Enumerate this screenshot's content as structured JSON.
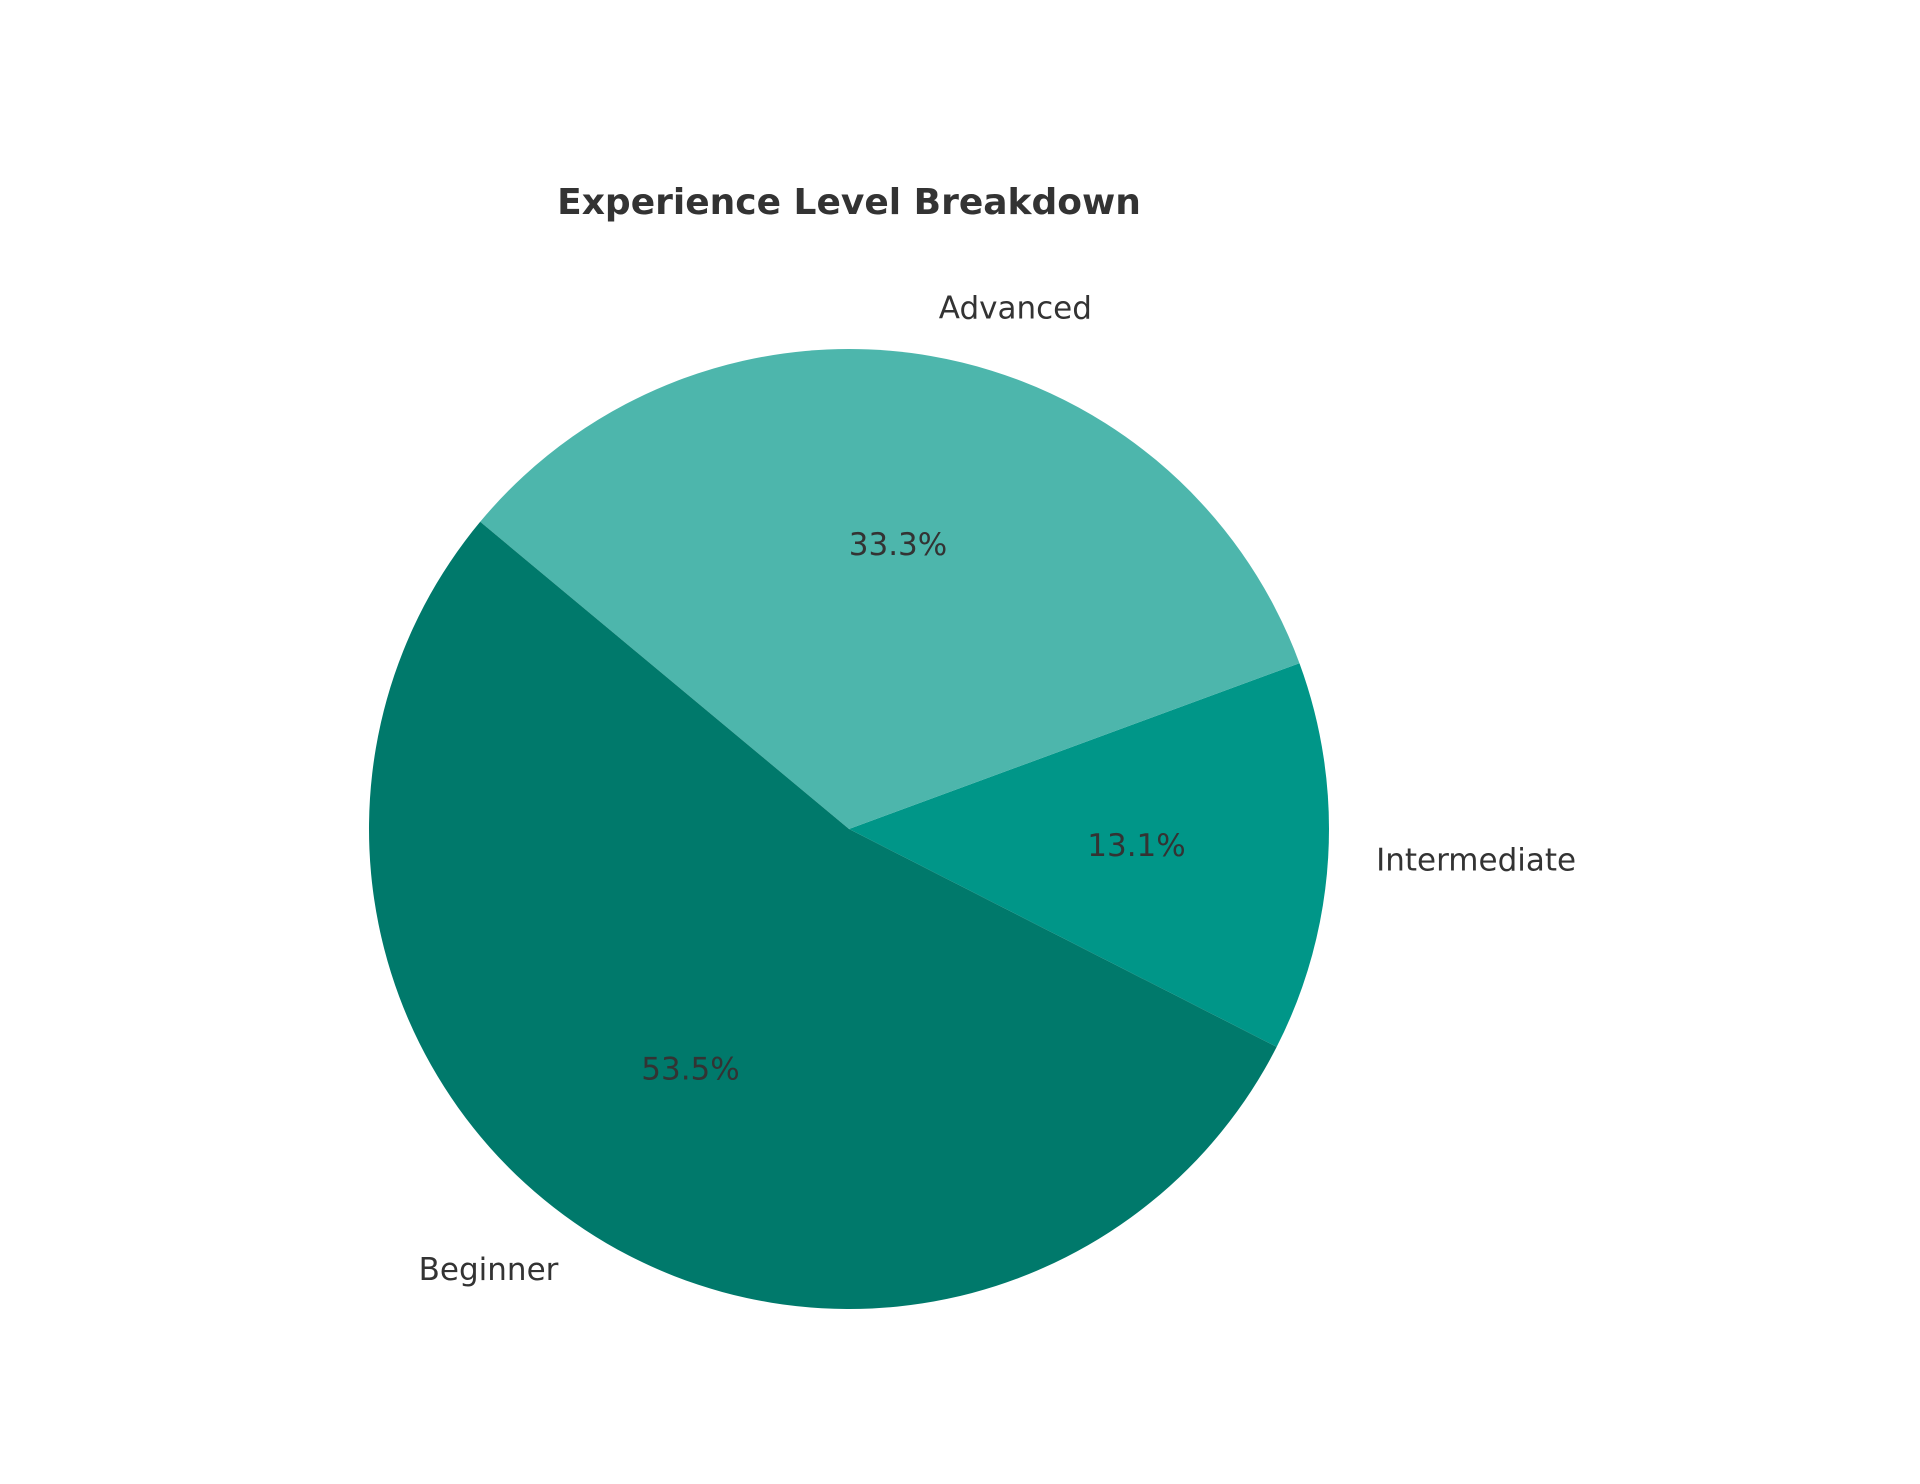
{
  "chart_data": {
    "type": "pie",
    "title": "Experience Level Breakdown",
    "slices": [
      {
        "label": "Intermediate",
        "value": 13.1,
        "pct_label": "13.1%",
        "color": "#009688"
      },
      {
        "label": "Advanced",
        "value": 33.3,
        "pct_label": "33.3%",
        "color": "#4db6ac"
      },
      {
        "label": "Beginner",
        "value": 53.5,
        "pct_label": "53.5%",
        "color": "#00796b"
      }
    ],
    "start_angle_deg": -27,
    "direction": "counterclockwise",
    "legend": "none",
    "grid": false
  }
}
